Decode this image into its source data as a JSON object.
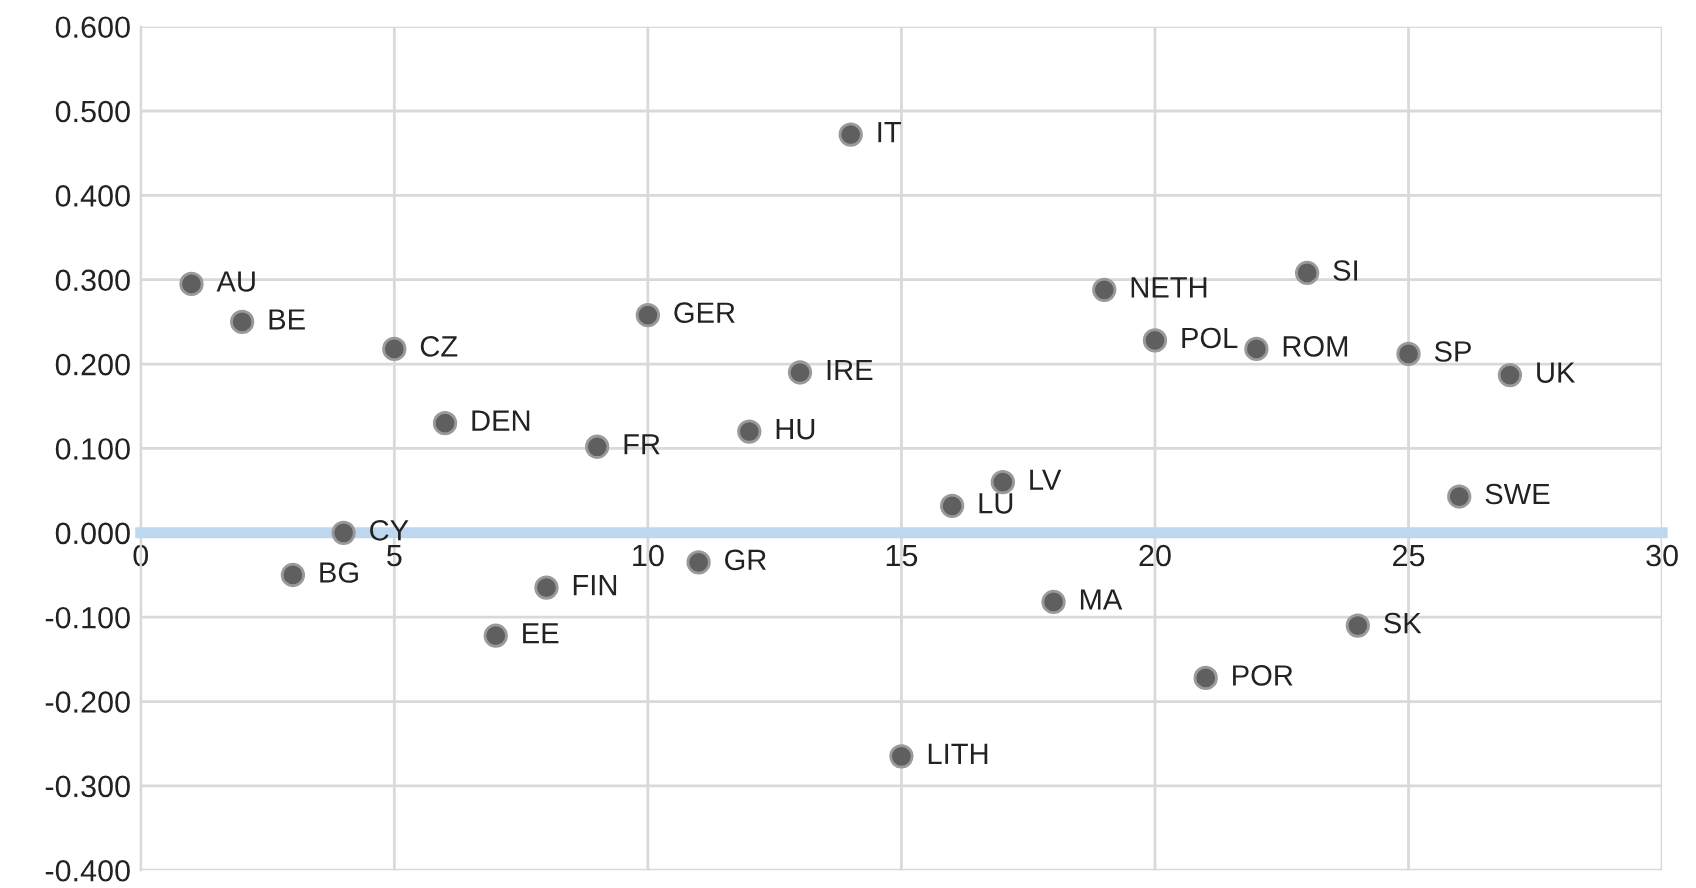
{
  "chart_data": {
    "type": "scatter",
    "marker": "circle",
    "grid": true,
    "x": [
      1,
      2,
      3,
      4,
      5,
      6,
      7,
      8,
      9,
      10,
      11,
      12,
      13,
      14,
      15,
      16,
      17,
      18,
      19,
      20,
      21,
      22,
      23,
      24,
      25,
      26,
      27
    ],
    "series": [
      {
        "color": "#5f5f5f",
        "values": [
          0.295,
          0.25,
          -0.05,
          0.0,
          0.218,
          0.13,
          -0.122,
          -0.065,
          0.102,
          0.258,
          -0.035,
          0.12,
          0.19,
          0.472,
          -0.265,
          0.032,
          0.06,
          -0.082,
          0.288,
          0.228,
          -0.172,
          0.218,
          0.308,
          -0.11,
          0.212,
          0.043,
          0.187
        ]
      }
    ],
    "xlim": [
      0,
      30
    ],
    "xticks": [
      0,
      5,
      10,
      15,
      20,
      25,
      30
    ],
    "ylim": [
      -0.4,
      0.6
    ],
    "yticks": [
      {
        "value": -0.4,
        "label": "-0.400"
      },
      {
        "value": -0.3,
        "label": "-0.300"
      },
      {
        "value": -0.2,
        "label": "-0.200"
      },
      {
        "value": -0.1,
        "label": "-0.100"
      },
      {
        "value": 0,
        "label": "0.000"
      },
      {
        "value": 0.1,
        "label": "0.100"
      },
      {
        "value": 0.2,
        "label": "0.200"
      },
      {
        "value": 0.3,
        "label": "0.300"
      },
      {
        "value": 0.4,
        "label": "0.400"
      },
      {
        "value": 0.5,
        "label": "0.500"
      },
      {
        "value": 0.6,
        "label": "0.600"
      }
    ],
    "annotations": [
      {
        "text": "AU",
        "x": 1,
        "y": 0.295
      },
      {
        "text": "BE",
        "x": 2,
        "y": 0.25
      },
      {
        "text": "BG",
        "x": 3,
        "y": -0.05
      },
      {
        "text": "CY",
        "x": 4,
        "y": 0.0
      },
      {
        "text": "CZ",
        "x": 5,
        "y": 0.218
      },
      {
        "text": "DEN",
        "x": 6,
        "y": 0.13
      },
      {
        "text": "EE",
        "x": 7,
        "y": -0.122
      },
      {
        "text": "FIN",
        "x": 8,
        "y": -0.065
      },
      {
        "text": "FR",
        "x": 9,
        "y": 0.102
      },
      {
        "text": "GER",
        "x": 10,
        "y": 0.258
      },
      {
        "text": "GR",
        "x": 11,
        "y": -0.035
      },
      {
        "text": "HU",
        "x": 12,
        "y": 0.12
      },
      {
        "text": "IRE",
        "x": 13,
        "y": 0.19
      },
      {
        "text": "IT",
        "x": 14,
        "y": 0.472
      },
      {
        "text": "LITH",
        "x": 15,
        "y": -0.265
      },
      {
        "text": "LU",
        "x": 16,
        "y": 0.032
      },
      {
        "text": "LV",
        "x": 17,
        "y": 0.06
      },
      {
        "text": "MA",
        "x": 18,
        "y": -0.082
      },
      {
        "text": "NETH",
        "x": 19,
        "y": 0.288
      },
      {
        "text": "POL",
        "x": 20,
        "y": 0.228
      },
      {
        "text": "POR",
        "x": 21,
        "y": -0.172
      },
      {
        "text": "ROM",
        "x": 22,
        "y": 0.218
      },
      {
        "text": "SI",
        "x": 23,
        "y": 0.308
      },
      {
        "text": "SK",
        "x": 24,
        "y": -0.11
      },
      {
        "text": "SP",
        "x": 25,
        "y": 0.212
      },
      {
        "text": "SWE",
        "x": 26,
        "y": 0.043
      },
      {
        "text": "UK",
        "x": 27,
        "y": 0.187
      }
    ]
  }
}
